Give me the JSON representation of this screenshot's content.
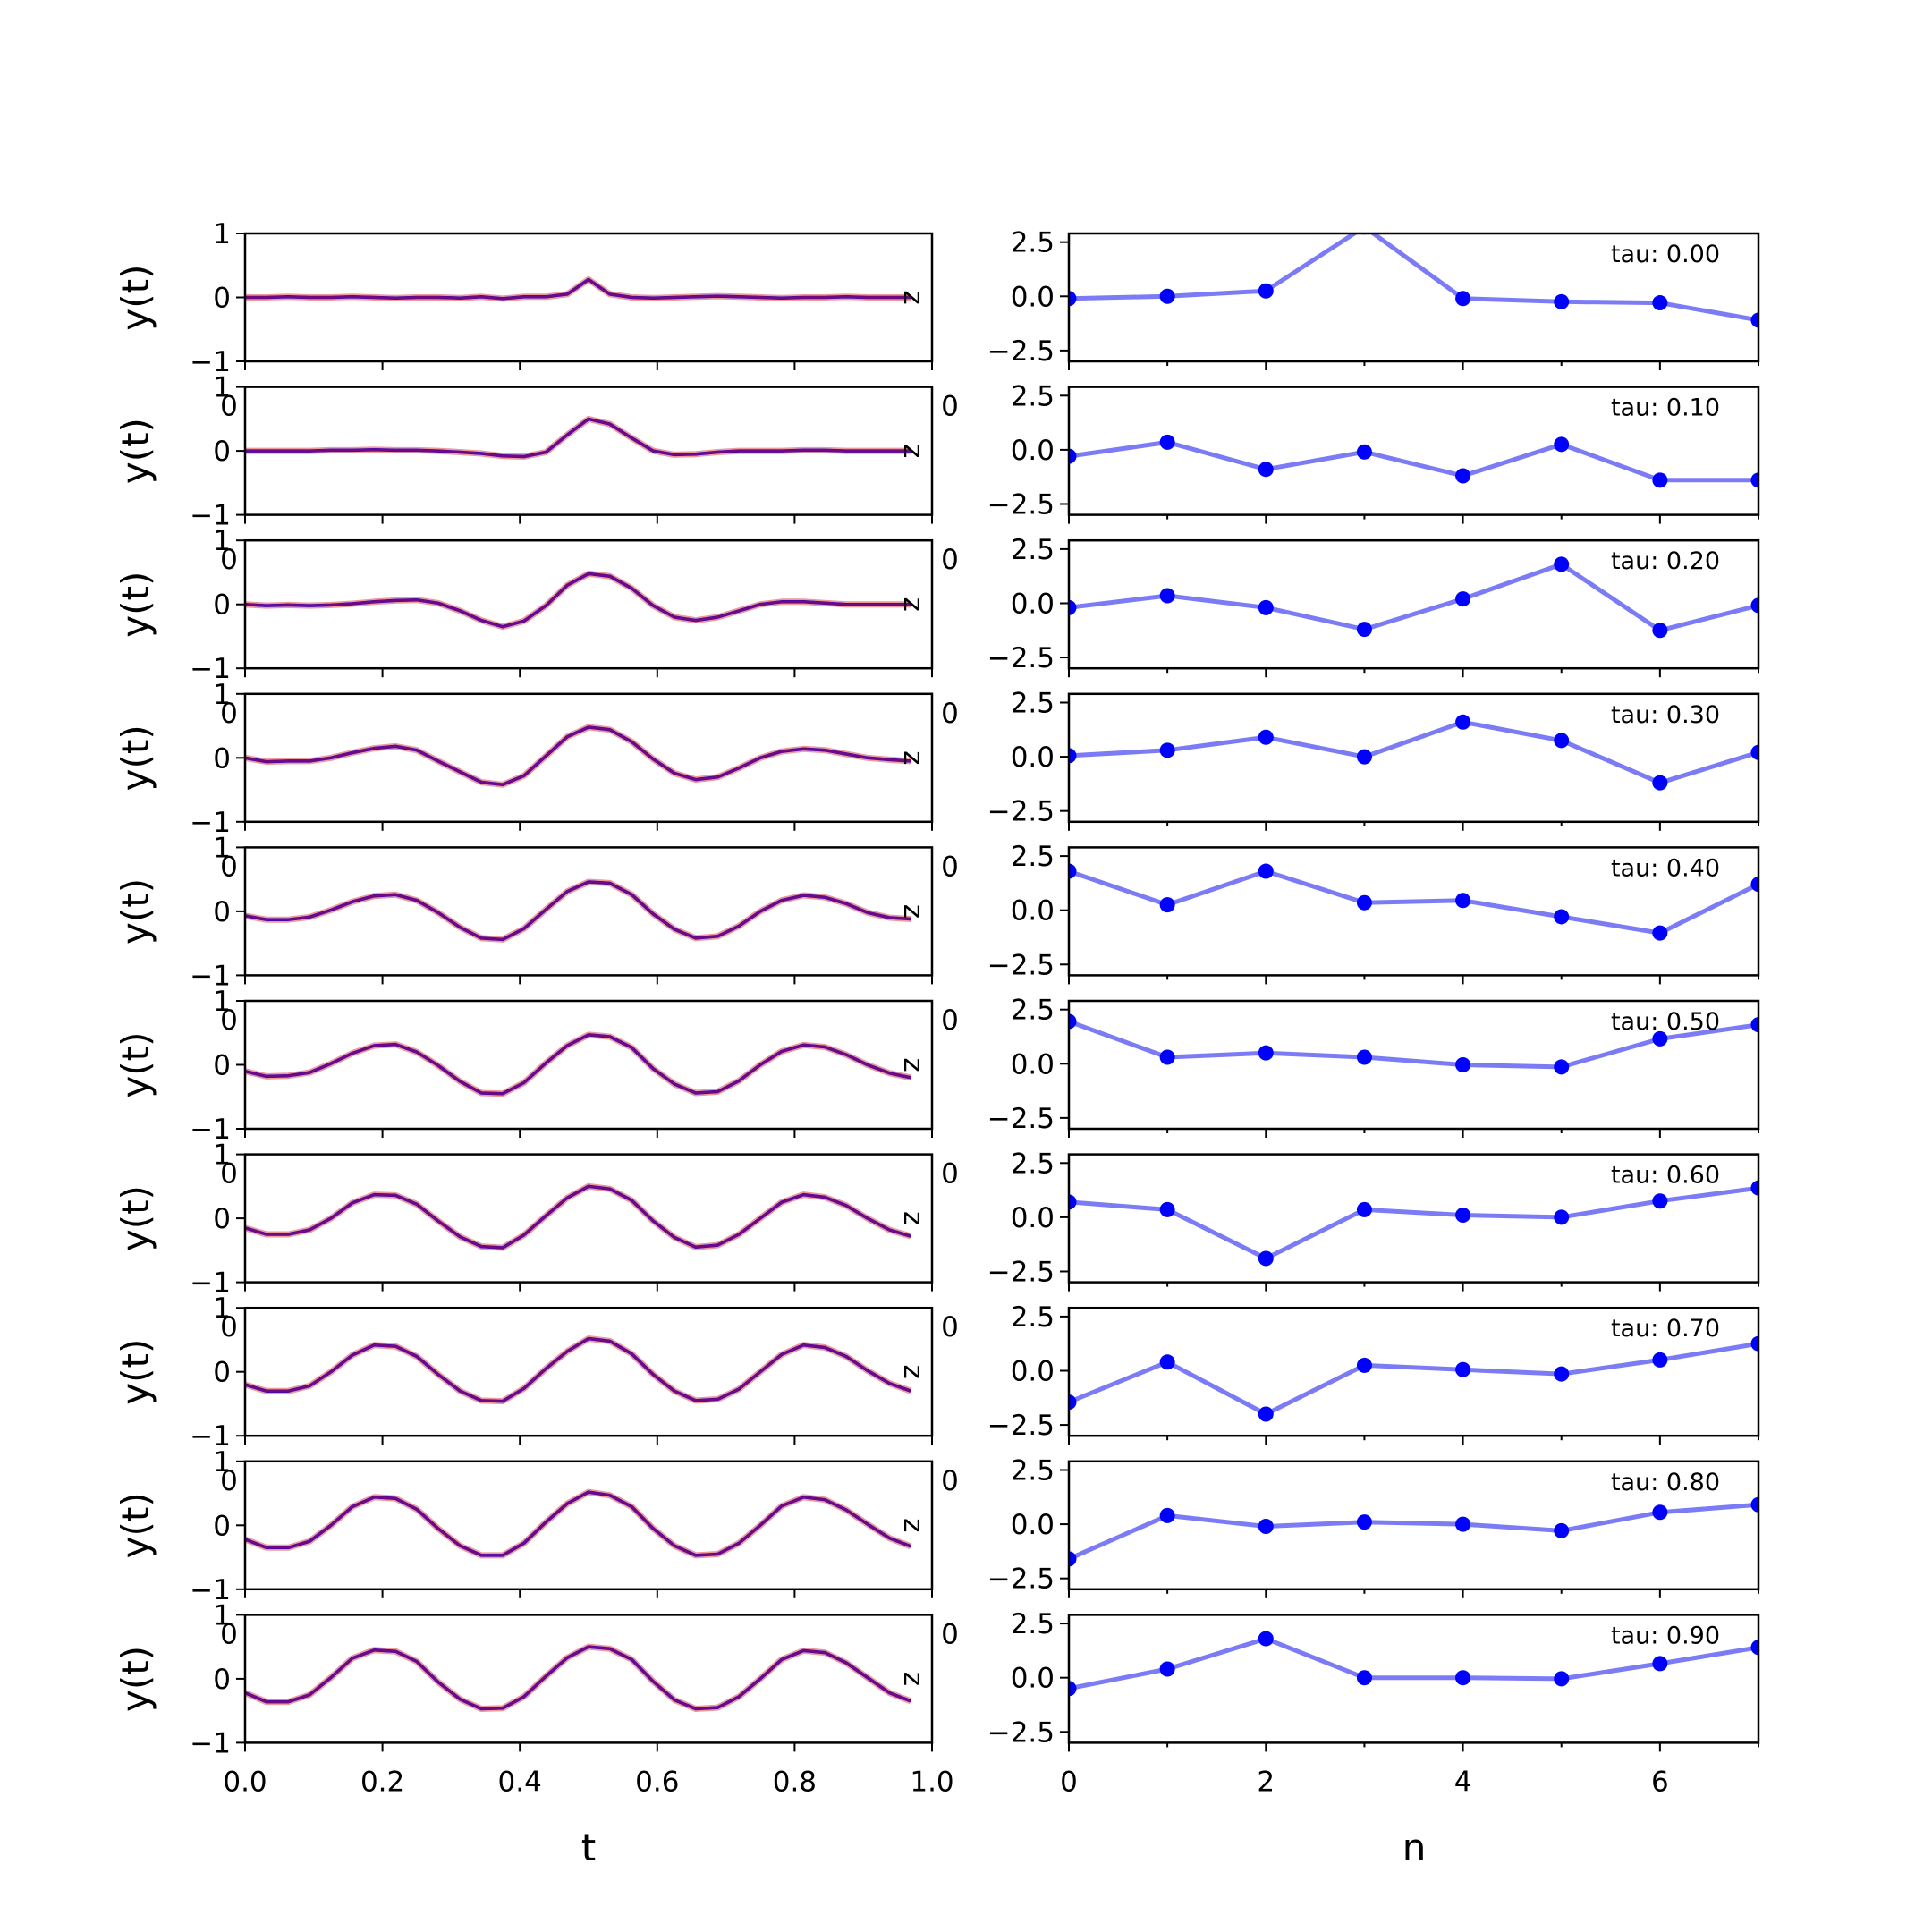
{
  "chart_data": {
    "type": "line",
    "rows": 10,
    "left": {
      "xlim": [
        0.0,
        1.0
      ],
      "ylim": [
        -1,
        1
      ],
      "xticks": [
        0.0,
        0.2,
        0.4,
        0.6,
        0.8,
        1.0
      ],
      "xtick_labels": [
        "0.0",
        "0.2",
        "0.4",
        "0.6",
        "0.8",
        "1.0"
      ],
      "yticks": [
        -1,
        0,
        1
      ],
      "ytick_labels": [
        "−1",
        "0",
        "1"
      ],
      "xlabel": "t",
      "ylabel": "y(t)",
      "series_colors": {
        "target": "#e8777b",
        "model": "#0000ff",
        "overlap": "#7a0a73"
      },
      "t": [
        0.0,
        0.031,
        0.063,
        0.094,
        0.125,
        0.156,
        0.188,
        0.219,
        0.25,
        0.281,
        0.313,
        0.344,
        0.375,
        0.406,
        0.438,
        0.469,
        0.5,
        0.531,
        0.563,
        0.594,
        0.625,
        0.656,
        0.688,
        0.719,
        0.75,
        0.781,
        0.813,
        0.844,
        0.875,
        0.906,
        0.938,
        0.969
      ],
      "panels": [
        {
          "y": [
            0.0,
            0.0,
            0.01,
            0.0,
            0.0,
            0.01,
            0.0,
            -0.01,
            0.0,
            0.0,
            -0.01,
            0.01,
            -0.02,
            0.01,
            0.01,
            0.05,
            0.28,
            0.05,
            0.0,
            -0.01,
            0.0,
            0.01,
            0.02,
            0.01,
            0.0,
            -0.01,
            0.0,
            0.0,
            0.01,
            0.0,
            0.0,
            0.0
          ]
        },
        {
          "y": [
            0.0,
            0.0,
            0.0,
            0.0,
            0.01,
            0.01,
            0.02,
            0.01,
            0.01,
            0.0,
            -0.02,
            -0.04,
            -0.08,
            -0.09,
            -0.02,
            0.25,
            0.5,
            0.42,
            0.2,
            0.0,
            -0.06,
            -0.05,
            -0.02,
            0.0,
            0.0,
            0.0,
            0.01,
            0.01,
            0.0,
            0.0,
            0.0,
            0.0
          ]
        },
        {
          "y": [
            0.0,
            -0.02,
            -0.01,
            -0.02,
            -0.01,
            0.01,
            0.04,
            0.06,
            0.07,
            0.02,
            -0.1,
            -0.25,
            -0.35,
            -0.26,
            -0.02,
            0.3,
            0.48,
            0.44,
            0.25,
            -0.02,
            -0.2,
            -0.25,
            -0.2,
            -0.1,
            0.0,
            0.04,
            0.04,
            0.02,
            0.0,
            0.0,
            0.0,
            0.0
          ]
        },
        {
          "y": [
            0.0,
            -0.06,
            -0.05,
            -0.05,
            0.0,
            0.08,
            0.15,
            0.18,
            0.12,
            -0.05,
            -0.22,
            -0.38,
            -0.42,
            -0.28,
            0.03,
            0.33,
            0.48,
            0.44,
            0.25,
            -0.02,
            -0.24,
            -0.34,
            -0.3,
            -0.16,
            0.0,
            0.1,
            0.14,
            0.12,
            0.06,
            0.0,
            -0.03,
            -0.05
          ]
        },
        {
          "y": [
            -0.07,
            -0.13,
            -0.13,
            -0.09,
            0.02,
            0.15,
            0.24,
            0.26,
            0.17,
            -0.02,
            -0.25,
            -0.42,
            -0.44,
            -0.27,
            0.03,
            0.31,
            0.46,
            0.44,
            0.26,
            -0.04,
            -0.28,
            -0.42,
            -0.39,
            -0.23,
            0.0,
            0.17,
            0.25,
            0.22,
            0.12,
            -0.02,
            -0.1,
            -0.12
          ]
        },
        {
          "y": [
            -0.1,
            -0.18,
            -0.17,
            -0.12,
            0.02,
            0.18,
            0.3,
            0.32,
            0.2,
            -0.01,
            -0.26,
            -0.44,
            -0.45,
            -0.28,
            0.03,
            0.3,
            0.47,
            0.44,
            0.27,
            -0.06,
            -0.3,
            -0.44,
            -0.42,
            -0.25,
            0.0,
            0.21,
            0.31,
            0.28,
            0.16,
            0.0,
            -0.13,
            -0.2
          ]
        },
        {
          "y": [
            -0.15,
            -0.25,
            -0.25,
            -0.18,
            0.0,
            0.24,
            0.37,
            0.36,
            0.22,
            -0.04,
            -0.29,
            -0.44,
            -0.46,
            -0.26,
            0.04,
            0.32,
            0.5,
            0.46,
            0.28,
            -0.04,
            -0.3,
            -0.45,
            -0.42,
            -0.25,
            0.0,
            0.25,
            0.37,
            0.33,
            0.2,
            0.0,
            -0.18,
            -0.28
          ]
        },
        {
          "y": [
            -0.2,
            -0.3,
            -0.3,
            -0.22,
            0.0,
            0.26,
            0.42,
            0.4,
            0.24,
            -0.04,
            -0.3,
            -0.45,
            -0.46,
            -0.26,
            0.05,
            0.32,
            0.52,
            0.48,
            0.28,
            -0.04,
            -0.3,
            -0.45,
            -0.43,
            -0.27,
            0.0,
            0.27,
            0.42,
            0.38,
            0.24,
            0.02,
            -0.18,
            -0.3
          ]
        },
        {
          "y": [
            -0.22,
            -0.35,
            -0.35,
            -0.25,
            0.0,
            0.29,
            0.44,
            0.42,
            0.25,
            -0.05,
            -0.32,
            -0.47,
            -0.47,
            -0.28,
            0.05,
            0.34,
            0.52,
            0.47,
            0.29,
            -0.05,
            -0.32,
            -0.47,
            -0.45,
            -0.28,
            0.0,
            0.3,
            0.44,
            0.4,
            0.24,
            0.02,
            -0.2,
            -0.33
          ]
        },
        {
          "y": [
            -0.22,
            -0.36,
            -0.36,
            -0.25,
            0.02,
            0.32,
            0.45,
            0.43,
            0.27,
            -0.05,
            -0.32,
            -0.47,
            -0.46,
            -0.28,
            0.04,
            0.33,
            0.5,
            0.47,
            0.3,
            -0.04,
            -0.33,
            -0.47,
            -0.45,
            -0.28,
            0.0,
            0.3,
            0.44,
            0.41,
            0.25,
            0.02,
            -0.22,
            -0.35
          ]
        }
      ]
    },
    "right": {
      "xlim": [
        0,
        7
      ],
      "ylim": [
        -3.0,
        2.9
      ],
      "xticks": [
        0,
        2,
        4,
        6
      ],
      "xtick_labels": [
        "0",
        "2",
        "4",
        "6"
      ],
      "minor_xticks": [
        1,
        3,
        5,
        7
      ],
      "yticks": [
        -2.5,
        0.0,
        2.5
      ],
      "ytick_labels": [
        "−2.5",
        "0.0",
        "2.5"
      ],
      "xlabel": "n",
      "line_color": "#7b7bf5",
      "marker_color": "#0000ff",
      "n": [
        0,
        1,
        2,
        3,
        4,
        5,
        6,
        7
      ],
      "panels": [
        {
          "tau": "tau: 0.00",
          "values": [
            -0.1,
            0.0,
            0.25,
            3.2,
            -0.1,
            -0.25,
            -0.3,
            -1.1
          ]
        },
        {
          "tau": "tau: 0.10",
          "values": [
            -0.3,
            0.35,
            -0.9,
            -0.1,
            -1.2,
            0.25,
            -1.4,
            -1.4
          ]
        },
        {
          "tau": "tau: 0.20",
          "values": [
            -0.2,
            0.35,
            -0.2,
            -1.2,
            0.2,
            1.8,
            -1.25,
            -0.1
          ]
        },
        {
          "tau": "tau: 0.30",
          "values": [
            0.05,
            0.3,
            0.9,
            0.0,
            1.6,
            0.75,
            -1.2,
            0.2
          ]
        },
        {
          "tau": "tau: 0.40",
          "values": [
            1.8,
            0.25,
            1.8,
            0.35,
            0.45,
            -0.3,
            -1.05,
            1.2
          ]
        },
        {
          "tau": "tau: 0.50",
          "values": [
            1.95,
            0.3,
            0.5,
            0.3,
            -0.05,
            -0.15,
            1.15,
            1.8
          ]
        },
        {
          "tau": "tau: 0.60",
          "values": [
            0.7,
            0.35,
            -1.9,
            0.35,
            0.1,
            0.0,
            0.75,
            1.35
          ]
        },
        {
          "tau": "tau: 0.70",
          "values": [
            -1.45,
            0.4,
            -2.0,
            0.25,
            0.05,
            -0.15,
            0.5,
            1.25
          ]
        },
        {
          "tau": "tau: 0.80",
          "values": [
            -1.6,
            0.4,
            -0.1,
            0.1,
            0.0,
            -0.3,
            0.55,
            0.9
          ]
        },
        {
          "tau": "tau: 0.90",
          "values": [
            -0.5,
            0.4,
            1.8,
            0.0,
            0.0,
            -0.05,
            0.65,
            1.4
          ]
        }
      ]
    },
    "stray_labels": {
      "overlap_tick": "0",
      "z_marker": "z"
    }
  }
}
